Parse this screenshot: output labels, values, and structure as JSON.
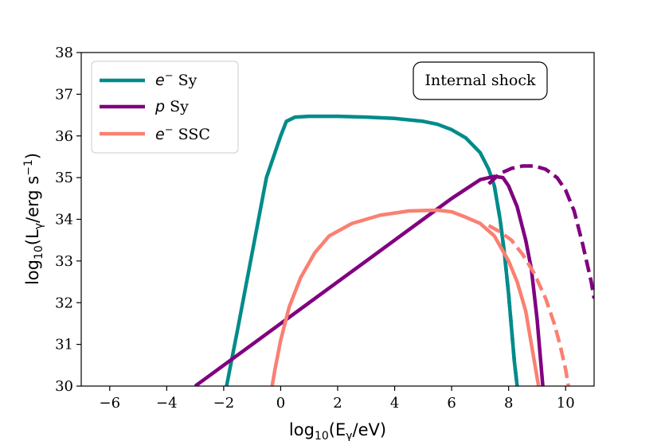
{
  "chart_data": {
    "type": "line",
    "title": "",
    "xlabel": "log10(Eγ/eV)",
    "ylabel": "log10(Lγ/erg s−1)",
    "xlim": [
      -7,
      11
    ],
    "ylim": [
      30,
      38
    ],
    "xticks": [
      -6,
      -4,
      -2,
      0,
      2,
      4,
      6,
      8,
      10
    ],
    "yticks": [
      30,
      31,
      32,
      33,
      34,
      35,
      36,
      37,
      38
    ],
    "xtick_labels": [
      "−6",
      "−4",
      "−2",
      "0",
      "2",
      "4",
      "6",
      "8",
      "10"
    ],
    "ytick_labels": [
      "30",
      "31",
      "32",
      "33",
      "34",
      "35",
      "36",
      "37",
      "38"
    ],
    "annotation": "Internal shock",
    "legend_position": "top-left",
    "series": [
      {
        "name": "e− Sy",
        "particle": "e",
        "superscript": "−",
        "process": "Sy",
        "color": "#008B8B",
        "style": "solid",
        "x": [
          -1.9,
          -1.5,
          -1.0,
          -0.5,
          0.0,
          0.2,
          0.5,
          1.0,
          2.0,
          3.0,
          4.0,
          5.0,
          5.5,
          6.0,
          6.5,
          7.0,
          7.3,
          7.5,
          7.7,
          7.85,
          8.0,
          8.1,
          8.2,
          8.3
        ],
        "y": [
          30.0,
          31.4,
          33.2,
          35.0,
          36.0,
          36.35,
          36.45,
          36.47,
          36.47,
          36.45,
          36.42,
          36.35,
          36.28,
          36.15,
          35.95,
          35.6,
          35.2,
          34.8,
          34.0,
          33.2,
          32.2,
          31.4,
          30.6,
          30.0
        ]
      },
      {
        "name": "e− Sy (dashed)",
        "color": "#008B8B",
        "style": "dashed",
        "x": [
          7.5,
          7.7,
          7.85,
          8.0,
          8.1,
          8.2,
          8.3
        ],
        "y": [
          34.8,
          34.0,
          33.2,
          32.2,
          31.4,
          30.6,
          30.0
        ]
      },
      {
        "name": "p Sy",
        "particle": "p",
        "superscript": "",
        "process": "Sy",
        "color": "#800080",
        "style": "solid",
        "x": [
          -3.0,
          -2.0,
          -1.0,
          0.0,
          1.0,
          2.0,
          3.0,
          4.0,
          5.0,
          6.0,
          7.0,
          7.5,
          7.8,
          8.0,
          8.3,
          8.6,
          8.8,
          9.0,
          9.1,
          9.2
        ],
        "y": [
          30.0,
          30.5,
          31.0,
          31.5,
          32.0,
          32.5,
          33.0,
          33.5,
          34.0,
          34.5,
          34.95,
          35.03,
          35.0,
          34.8,
          34.3,
          33.5,
          32.8,
          31.6,
          30.8,
          30.0
        ]
      },
      {
        "name": "p Sy (dashed)",
        "color": "#800080",
        "style": "dashed",
        "x": [
          7.3,
          7.7,
          8.1,
          8.5,
          8.9,
          9.3,
          9.7,
          10.0,
          10.3,
          10.6,
          10.9,
          11.0
        ],
        "y": [
          34.85,
          35.1,
          35.22,
          35.28,
          35.28,
          35.2,
          35.0,
          34.7,
          34.2,
          33.4,
          32.5,
          32.1
        ]
      },
      {
        "name": "e− SSC",
        "particle": "e",
        "superscript": "−",
        "process": "SSC",
        "color": "#FA8072",
        "style": "solid",
        "x": [
          -0.3,
          -0.2,
          0.0,
          0.3,
          0.7,
          1.2,
          1.7,
          2.5,
          3.5,
          4.5,
          5.5,
          6.0,
          6.5,
          7.0,
          7.5,
          8.0,
          8.3,
          8.6,
          8.8,
          8.95,
          9.05
        ],
        "y": [
          30.0,
          30.4,
          31.1,
          31.9,
          32.6,
          33.2,
          33.6,
          33.9,
          34.1,
          34.2,
          34.22,
          34.18,
          34.05,
          33.9,
          33.6,
          33.0,
          32.5,
          31.8,
          31.0,
          30.4,
          30.0
        ]
      },
      {
        "name": "e− SSC (dashed)",
        "color": "#FA8072",
        "style": "dashed",
        "x": [
          7.3,
          7.7,
          8.1,
          8.5,
          8.9,
          9.3,
          9.6,
          9.8,
          10.0,
          10.1
        ],
        "y": [
          33.85,
          33.7,
          33.5,
          33.15,
          32.7,
          32.1,
          31.5,
          31.0,
          30.4,
          30.0
        ]
      }
    ]
  }
}
